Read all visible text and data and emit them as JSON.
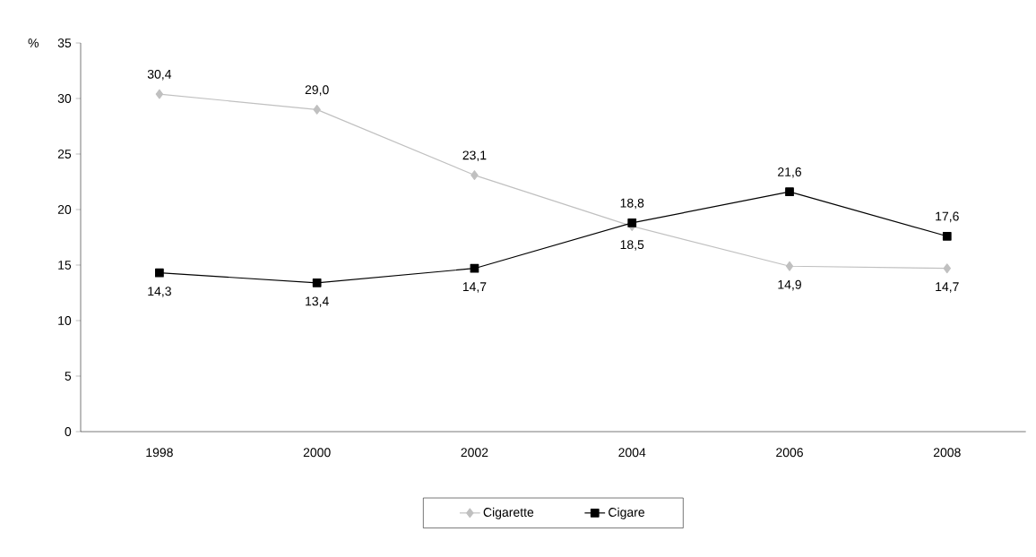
{
  "chart_data": {
    "type": "line",
    "ylabel": "%",
    "categories": [
      "1998",
      "2000",
      "2002",
      "2004",
      "2006",
      "2008"
    ],
    "series": [
      {
        "name": "Cigarette",
        "color": "#c0c0c0",
        "marker": "diamond",
        "values": [
          30.4,
          29.0,
          23.1,
          18.5,
          14.9,
          14.7
        ],
        "value_labels": [
          "30,4",
          "29,0",
          "23,1",
          "18,5",
          "14,9",
          "14,7"
        ]
      },
      {
        "name": "Cigare",
        "color": "#000000",
        "marker": "square",
        "values": [
          14.3,
          13.4,
          14.7,
          18.8,
          21.6,
          17.6
        ],
        "value_labels": [
          "14,3",
          "13,4",
          "14,7",
          "18,8",
          "21,6",
          "17,6"
        ]
      }
    ],
    "ylim": [
      0,
      35
    ],
    "yticks": [
      0,
      5,
      10,
      15,
      20,
      25,
      30,
      35
    ],
    "grid": false,
    "legend": "bottom",
    "line_style": "solid"
  }
}
